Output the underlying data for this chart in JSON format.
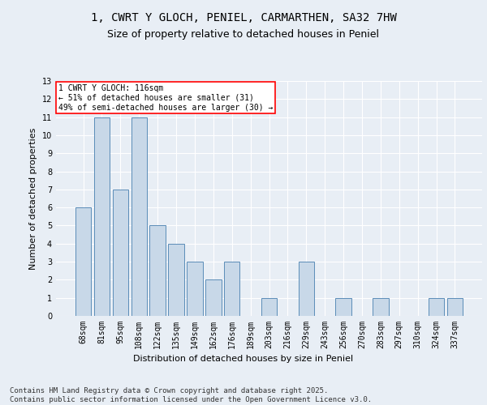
{
  "title_line1": "1, CWRT Y GLOCH, PENIEL, CARMARTHEN, SA32 7HW",
  "title_line2": "Size of property relative to detached houses in Peniel",
  "xlabel": "Distribution of detached houses by size in Peniel",
  "ylabel": "Number of detached properties",
  "categories": [
    "68sqm",
    "81sqm",
    "95sqm",
    "108sqm",
    "122sqm",
    "135sqm",
    "149sqm",
    "162sqm",
    "176sqm",
    "189sqm",
    "203sqm",
    "216sqm",
    "229sqm",
    "243sqm",
    "256sqm",
    "270sqm",
    "283sqm",
    "297sqm",
    "310sqm",
    "324sqm",
    "337sqm"
  ],
  "values": [
    6,
    11,
    7,
    11,
    5,
    4,
    3,
    2,
    3,
    0,
    1,
    0,
    3,
    0,
    1,
    0,
    1,
    0,
    0,
    1,
    1
  ],
  "bar_color": "#c8d8e8",
  "bar_edge_color": "#5b8db8",
  "annotation_box_text": "1 CWRT Y GLOCH: 116sqm\n← 51% of detached houses are smaller (31)\n49% of semi-detached houses are larger (30) →",
  "annotation_box_color": "white",
  "annotation_box_edge_color": "red",
  "ylim": [
    0,
    13
  ],
  "yticks": [
    0,
    1,
    2,
    3,
    4,
    5,
    6,
    7,
    8,
    9,
    10,
    11,
    12,
    13
  ],
  "footer_text": "Contains HM Land Registry data © Crown copyright and database right 2025.\nContains public sector information licensed under the Open Government Licence v3.0.",
  "background_color": "#e8eef5",
  "plot_bg_color": "#e8eef5",
  "grid_color": "white",
  "title_fontsize": 10,
  "subtitle_fontsize": 9,
  "axis_label_fontsize": 8,
  "tick_fontsize": 7,
  "footer_fontsize": 6.5
}
